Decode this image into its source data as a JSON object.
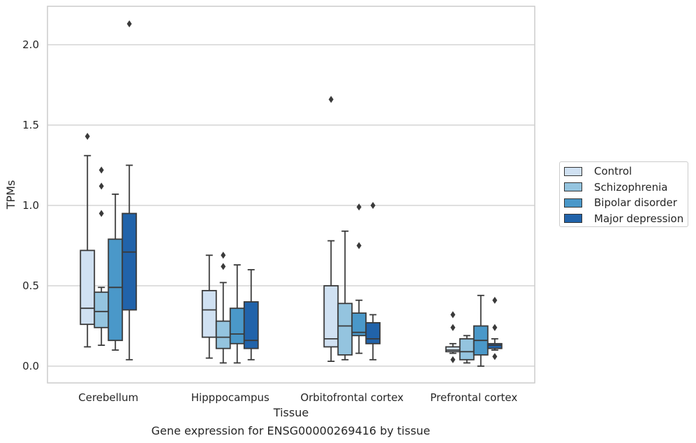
{
  "chart_data": {
    "type": "box",
    "caption": "Gene expression for ENSG00000269416 by tissue",
    "xlabel": "Tissue",
    "ylabel": "TPMs",
    "ylim": [
      -0.1,
      2.25
    ],
    "yticks": [
      "0.0",
      "0.5",
      "1.0",
      "1.5",
      "2.0"
    ],
    "grid": true,
    "legend_position": "right",
    "categories": [
      "Cerebellum",
      "Hipppocampus",
      "Orbitofrontal cortex",
      "Prefrontal cortex"
    ],
    "series": [
      {
        "name": "Control",
        "color": "#d0e1f2",
        "boxes": [
          {
            "whislo": 0.12,
            "q1": 0.26,
            "med": 0.36,
            "q3": 0.72,
            "whishi": 1.31,
            "fliers": [
              1.43
            ]
          },
          {
            "whislo": 0.05,
            "q1": 0.18,
            "med": 0.35,
            "q3": 0.47,
            "whishi": 0.69,
            "fliers": []
          },
          {
            "whislo": 0.03,
            "q1": 0.12,
            "med": 0.17,
            "q3": 0.5,
            "whishi": 0.78,
            "fliers": [
              1.66
            ]
          },
          {
            "whislo": 0.08,
            "q1": 0.09,
            "med": 0.1,
            "q3": 0.12,
            "whishi": 0.14,
            "fliers": [
              0.32,
              0.24,
              0.04
            ]
          }
        ]
      },
      {
        "name": "Schizophrenia",
        "color": "#94c4df",
        "boxes": [
          {
            "whislo": 0.13,
            "q1": 0.24,
            "med": 0.34,
            "q3": 0.46,
            "whishi": 0.49,
            "fliers": [
              1.22,
              1.12,
              0.95
            ]
          },
          {
            "whislo": 0.02,
            "q1": 0.11,
            "med": 0.18,
            "q3": 0.28,
            "whishi": 0.52,
            "fliers": [
              0.69,
              0.62
            ]
          },
          {
            "whislo": 0.04,
            "q1": 0.07,
            "med": 0.25,
            "q3": 0.39,
            "whishi": 0.84,
            "fliers": []
          },
          {
            "whislo": 0.02,
            "q1": 0.04,
            "med": 0.09,
            "q3": 0.17,
            "whishi": 0.19,
            "fliers": []
          }
        ]
      },
      {
        "name": "Bipolar disorder",
        "color": "#4a98c9",
        "boxes": [
          {
            "whislo": 0.1,
            "q1": 0.16,
            "med": 0.49,
            "q3": 0.79,
            "whishi": 1.07,
            "fliers": []
          },
          {
            "whislo": 0.02,
            "q1": 0.14,
            "med": 0.2,
            "q3": 0.36,
            "whishi": 0.63,
            "fliers": []
          },
          {
            "whislo": 0.08,
            "q1": 0.19,
            "med": 0.21,
            "q3": 0.33,
            "whishi": 0.41,
            "fliers": [
              0.99,
              0.75
            ]
          },
          {
            "whislo": 0.0,
            "q1": 0.07,
            "med": 0.16,
            "q3": 0.25,
            "whishi": 0.44,
            "fliers": []
          }
        ]
      },
      {
        "name": "Major depression",
        "color": "#2163aa",
        "boxes": [
          {
            "whislo": 0.04,
            "q1": 0.35,
            "med": 0.71,
            "q3": 0.95,
            "whishi": 1.25,
            "fliers": [
              2.13
            ]
          },
          {
            "whislo": 0.04,
            "q1": 0.11,
            "med": 0.16,
            "q3": 0.4,
            "whishi": 0.6,
            "fliers": []
          },
          {
            "whislo": 0.04,
            "q1": 0.14,
            "med": 0.17,
            "q3": 0.27,
            "whishi": 0.32,
            "fliers": [
              1.0
            ]
          },
          {
            "whislo": 0.1,
            "q1": 0.11,
            "med": 0.13,
            "q3": 0.14,
            "whishi": 0.17,
            "fliers": [
              0.41,
              0.24,
              0.06
            ]
          }
        ]
      }
    ]
  }
}
